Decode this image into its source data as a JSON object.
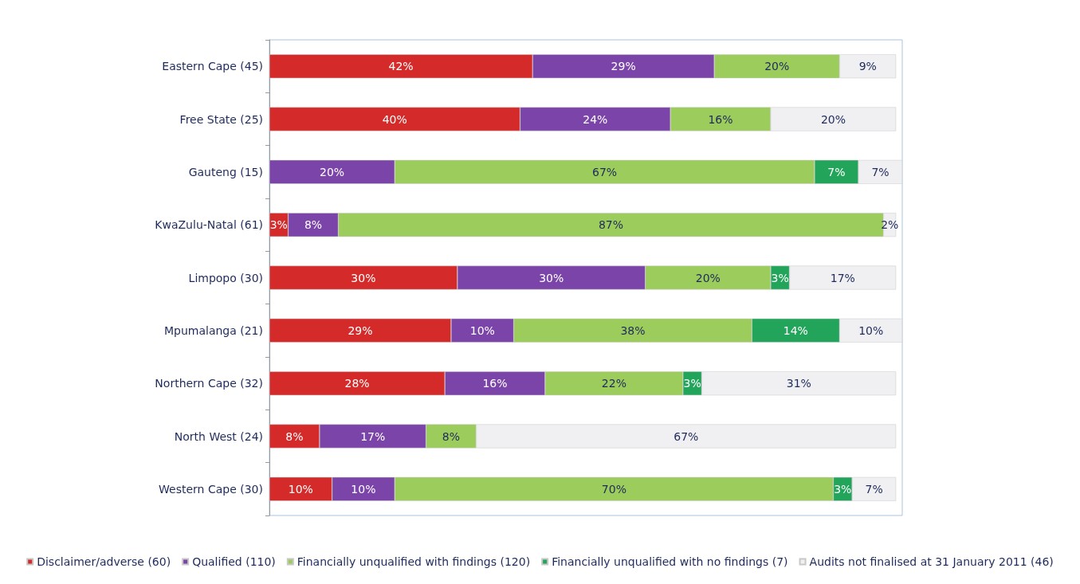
{
  "chart_data": {
    "type": "bar",
    "orientation": "horizontal",
    "stacked": true,
    "legend": "bottom",
    "categories": [
      "Eastern Cape (45)",
      "Free State (25)",
      "Gauteng (15)",
      "KwaZulu-Natal (61)",
      "Limpopo (30)",
      "Mpumalanga (21)",
      "Northern Cape (32)",
      "North West (24)",
      "Western Cape (30)"
    ],
    "series": [
      {
        "name": "Disclaimer/adverse (60)",
        "color": "#d42a2a",
        "values": [
          42,
          40,
          null,
          3,
          30,
          29,
          28,
          8,
          10
        ],
        "value_labels": [
          "42%",
          "40%",
          null,
          "3%",
          "30%",
          "29%",
          "28%",
          "8%",
          "10%"
        ]
      },
      {
        "name": "Qualified (110)",
        "color": "#7b44a8",
        "values": [
          29,
          24,
          20,
          8,
          30,
          10,
          16,
          17,
          10
        ],
        "value_labels": [
          "29%",
          "24%",
          "20%",
          "8%",
          "30%",
          "10%",
          "16%",
          "17%",
          "10%"
        ]
      },
      {
        "name": "Financially unqualified with findings (120)",
        "color": "#9ccc5c",
        "values": [
          20,
          16,
          67,
          87,
          20,
          38,
          22,
          8,
          70
        ],
        "value_labels": [
          "20%",
          "16%",
          "67%",
          "87%",
          "20%",
          "38%",
          "22%",
          "8%",
          "70%"
        ]
      },
      {
        "name": "Financially unqualified with no findings (7)",
        "color": "#22a55a",
        "values": [
          null,
          null,
          7,
          null,
          3,
          14,
          3,
          null,
          3
        ],
        "value_labels": [
          null,
          null,
          "7%",
          null,
          "3%",
          "14%",
          "3%",
          null,
          "3%"
        ]
      },
      {
        "name": "Audits not finalised at 31 January 2011 (46)",
        "color": "#f0f0f2",
        "values": [
          9,
          20,
          7,
          2,
          17,
          10,
          31,
          67,
          7
        ],
        "value_labels": [
          "9%",
          "20%",
          "7%",
          "2%",
          "17%",
          "10%",
          "31%",
          "67%",
          "7%"
        ]
      }
    ]
  }
}
